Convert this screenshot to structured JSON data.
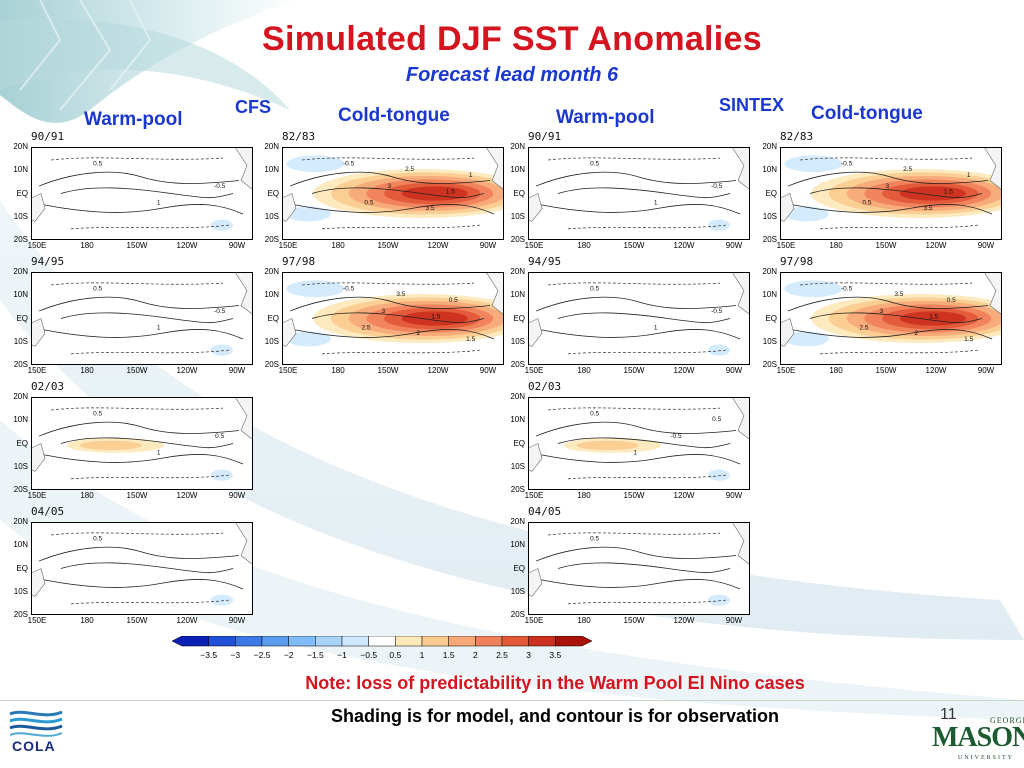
{
  "title": "Simulated DJF SST Anomalies",
  "subtitle": "Forecast lead month 6",
  "models": [
    {
      "name": "CFS",
      "warm_label": "Warm-pool",
      "cold_label": "Cold-tongue"
    },
    {
      "name": "SINTEX",
      "warm_label": "Warm-pool",
      "cold_label": "Cold-tongue"
    }
  ],
  "note": "Note: loss of predictability in the Warm Pool El Nino cases",
  "shading_note": "Shading is for model, and contour is for observation",
  "page_number": "11",
  "logos": {
    "left": "COLA",
    "right_top": "GEORGE",
    "right_main": "MASON",
    "right_bottom": "UNIVERSITY"
  },
  "colors": {
    "title": "#d4141e",
    "header": "#1a38d0"
  },
  "chart_data": {
    "type": "heatmap",
    "title": "Simulated DJF SST Anomalies",
    "subtitle": "Forecast lead month 6",
    "lat_ticks": [
      "20N",
      "10N",
      "EQ",
      "10S",
      "20S"
    ],
    "lon_ticks": [
      "150E",
      "180",
      "150W",
      "120W",
      "90W"
    ],
    "colorbar": {
      "levels": [
        -3.5,
        -3,
        -2.5,
        -2,
        -1.5,
        -1,
        -0.5,
        0.5,
        1,
        1.5,
        2,
        2.5,
        3,
        3.5
      ],
      "labels": [
        "−3.5",
        "−3",
        "−2.5",
        "−2",
        "−1.5",
        "−1",
        "−0.5",
        "0.5",
        "1",
        "1.5",
        "2",
        "2.5",
        "3",
        "3.5"
      ],
      "colors": [
        "#0a1fb4",
        "#2050d8",
        "#3c78e8",
        "#5c9cf0",
        "#82bcf8",
        "#a8d4fb",
        "#d0e8fd",
        "#ffffff",
        "#fde8b8",
        "#fbcb90",
        "#f7a878",
        "#f0805a",
        "#e25838",
        "#cc3020",
        "#a81208"
      ]
    },
    "panels": [
      {
        "id": "cfs-90-91",
        "model": "CFS",
        "year": "90/91",
        "type": "warm-pool",
        "peak_anomaly": 0.5,
        "contour_labels": [
          "0.5",
          "1",
          "-0.5"
        ]
      },
      {
        "id": "cfs-82-83",
        "model": "CFS",
        "year": "82/83",
        "type": "cold-tongue",
        "peak_anomaly": 3.5,
        "contour_labels": [
          "-0.5",
          "0.5",
          "3",
          "2.5",
          "3.5",
          "1.5",
          "1"
        ]
      },
      {
        "id": "cfs-94-95",
        "model": "CFS",
        "year": "94/95",
        "type": "warm-pool",
        "peak_anomaly": 0.5,
        "contour_labels": [
          "0.5",
          "1",
          "-0.5"
        ]
      },
      {
        "id": "cfs-97-98",
        "model": "CFS",
        "year": "97/98",
        "type": "cold-tongue",
        "peak_anomaly": 3.5,
        "contour_labels": [
          "-0.5",
          "2.5",
          "3",
          "3.5",
          "2",
          "1.5",
          "0.5",
          "1.5"
        ]
      },
      {
        "id": "cfs-02-03",
        "model": "CFS",
        "year": "02/03",
        "type": "warm-pool",
        "peak_anomaly": 1.5,
        "contour_labels": [
          "0.5",
          "1",
          "0.5"
        ]
      },
      {
        "id": "cfs-04-05",
        "model": "CFS",
        "year": "04/05",
        "type": "warm-pool",
        "peak_anomaly": 0.5,
        "contour_labels": [
          "0.5"
        ]
      },
      {
        "id": "sintex-90-91",
        "model": "SINTEX",
        "year": "90/91",
        "type": "warm-pool",
        "peak_anomaly": 0,
        "contour_labels": [
          "0.5",
          "1",
          "-0.5"
        ]
      },
      {
        "id": "sintex-82-83",
        "model": "SINTEX",
        "year": "82/83",
        "type": "cold-tongue",
        "peak_anomaly": 3.5,
        "contour_labels": [
          "-0.5",
          "0.5",
          "3",
          "2.5",
          "3.5",
          "1.5",
          "1"
        ]
      },
      {
        "id": "sintex-94-95",
        "model": "SINTEX",
        "year": "94/95",
        "type": "warm-pool",
        "peak_anomaly": 0.5,
        "contour_labels": [
          "0.5",
          "1",
          "-0.5"
        ]
      },
      {
        "id": "sintex-97-98",
        "model": "SINTEX",
        "year": "97/98",
        "type": "cold-tongue",
        "peak_anomaly": 3.5,
        "contour_labels": [
          "-0.5",
          "2.5",
          "3",
          "3.5",
          "2",
          "1.5",
          "0.5",
          "1.5"
        ]
      },
      {
        "id": "sintex-02-03",
        "model": "SINTEX",
        "year": "02/03",
        "type": "warm-pool",
        "peak_anomaly": 1.5,
        "contour_labels": [
          "0.5",
          "1",
          "-0.5",
          "0.5"
        ]
      },
      {
        "id": "sintex-04-05",
        "model": "SINTEX",
        "year": "04/05",
        "type": "warm-pool",
        "peak_anomaly": 0.5,
        "contour_labels": [
          "0.5"
        ]
      }
    ]
  }
}
